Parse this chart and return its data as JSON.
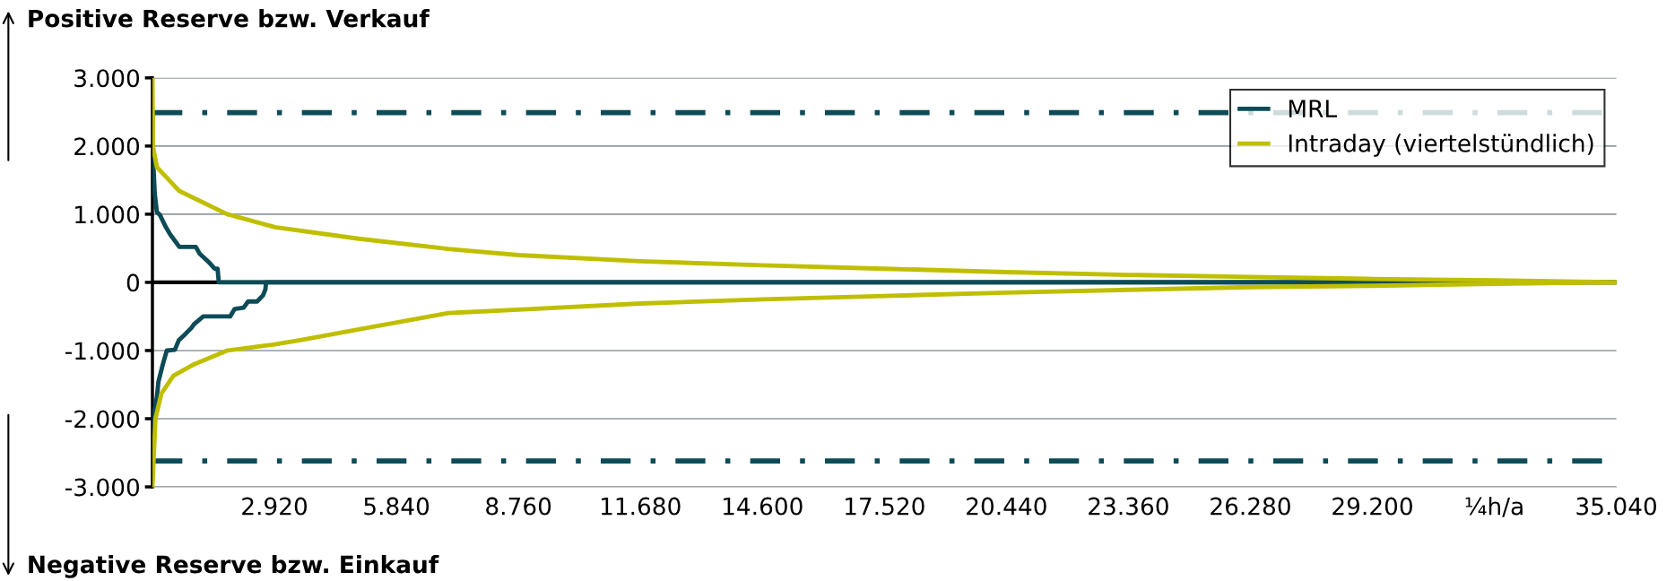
{
  "chart_data": {
    "type": "line",
    "xlim": [
      0,
      35040
    ],
    "ylim": [
      -3000,
      3000
    ],
    "xticks": [
      {
        "value": 2920,
        "label": "2.920"
      },
      {
        "value": 5840,
        "label": "5.840"
      },
      {
        "value": 8760,
        "label": "8.760"
      },
      {
        "value": 11680,
        "label": "11.680"
      },
      {
        "value": 14600,
        "label": "14.600"
      },
      {
        "value": 17520,
        "label": "17.520"
      },
      {
        "value": 20440,
        "label": "20.440"
      },
      {
        "value": 23360,
        "label": "23.360"
      },
      {
        "value": 26280,
        "label": "26.280"
      },
      {
        "value": 29200,
        "label": "29.200"
      },
      {
        "value": 32120,
        "label": "¼h/a"
      },
      {
        "value": 35040,
        "label": "35.040"
      }
    ],
    "yticks": [
      {
        "value": -3000,
        "label": "-3.000"
      },
      {
        "value": -2000,
        "label": "-2.000"
      },
      {
        "value": -1000,
        "label": "-1.000"
      },
      0,
      {
        "value": 1000,
        "label": "1.000"
      },
      {
        "value": 2000,
        "label": "2.000"
      },
      {
        "value": 3000,
        "label": "3.000"
      }
    ],
    "grid": "y",
    "legend": "top right",
    "marker": "none",
    "line_style": "solid",
    "annotations": [
      "Positive Reserve bzw. Verkauf",
      "Negative Reserve bzw. Einkauf"
    ],
    "ref_lines": [
      {
        "axis": "y",
        "value": 2490,
        "label": null,
        "color": "#0d4b57",
        "line_style": "dashdot"
      },
      {
        "axis": "y",
        "value": -2620,
        "label": null,
        "color": "#0d4b57",
        "line_style": "dashdot"
      }
    ],
    "series": [
      {
        "name": "MRL",
        "color": "#0d4b57",
        "x": [
          0,
          14,
          57,
          107,
          179,
          250,
          322,
          429,
          501,
          644,
          1038,
          1131,
          1288,
          1360,
          1489,
          1560,
          1589,
          35040
        ],
        "values": [
          2490,
          1820,
          1290,
          1030,
          990,
          900,
          810,
          700,
          640,
          520,
          520,
          420,
          330,
          290,
          200,
          200,
          0,
          0
        ]
      },
      {
        "color": "#0d4b57",
        "x": [
          0,
          14,
          107,
          143,
          250,
          344,
          537,
          630,
          751,
          930,
          1002,
          1217,
          1861,
          1968,
          2183,
          2290,
          2505,
          2648,
          2705,
          2720,
          35040
        ],
        "values": [
          -2620,
          -2000,
          -1680,
          -1460,
          -1200,
          -1000,
          -990,
          -850,
          -780,
          -670,
          -610,
          -500,
          -500,
          -390,
          -370,
          -280,
          -280,
          -190,
          -100,
          0,
          0
        ]
      },
      {
        "name": "Intraday (viertelstündlich)",
        "color": "#bfbf00",
        "x": [
          0,
          14,
          107,
          644,
          1789,
          2934,
          4938,
          7085,
          8760,
          11680,
          14600,
          17520,
          20440,
          23360,
          26280,
          29200,
          32120,
          35040
        ],
        "values": [
          3000,
          1990,
          1690,
          1340,
          1000,
          810,
          640,
          490,
          400,
          310,
          250,
          200,
          150,
          110,
          80,
          50,
          30,
          0
        ]
      },
      {
        "color": "#bfbf00",
        "x": [
          0,
          72,
          215,
          501,
          1002,
          1789,
          2920,
          3507,
          4938,
          7085,
          8760,
          11680,
          14600,
          17520,
          20440,
          23360,
          26280,
          29200,
          32120,
          35040
        ],
        "values": [
          -3000,
          -2000,
          -1630,
          -1370,
          -1200,
          -1000,
          -910,
          -850,
          -690,
          -450,
          -400,
          -310,
          -250,
          -200,
          -150,
          -110,
          -70,
          -50,
          -20,
          0
        ]
      }
    ]
  }
}
